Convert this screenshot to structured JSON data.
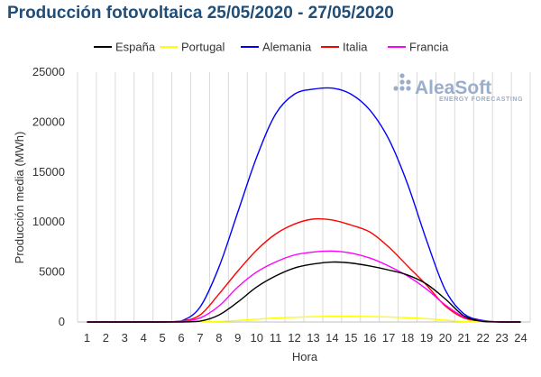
{
  "title": "Producción fotovoltaica 25/05/2020 - 27/05/2020",
  "logo": {
    "name": "AleaSoft",
    "tagline": "ENERGY FORECASTING"
  },
  "chart_data": {
    "type": "line",
    "title": "Producción fotovoltaica 25/05/2020 - 27/05/2020",
    "xlabel": "Hora",
    "ylabel": "Producción media (MWh)",
    "categories": [
      "1",
      "2",
      "3",
      "4",
      "5",
      "6",
      "7",
      "8",
      "9",
      "10",
      "11",
      "12",
      "13",
      "14",
      "15",
      "16",
      "17",
      "18",
      "19",
      "20",
      "21",
      "22",
      "23",
      "24"
    ],
    "ylim": [
      0,
      25000
    ],
    "yticks": [
      0,
      5000,
      10000,
      15000,
      20000,
      25000
    ],
    "grid": "vertical",
    "legend": "top",
    "series": [
      {
        "name": "España",
        "color": "#000000",
        "values": [
          0,
          0,
          0,
          0,
          0,
          0,
          80,
          700,
          2000,
          3500,
          4600,
          5400,
          5800,
          6000,
          5900,
          5600,
          5200,
          4700,
          3800,
          2300,
          600,
          50,
          0,
          0
        ]
      },
      {
        "name": "Portugal",
        "color": "#ffff00",
        "values": [
          0,
          0,
          0,
          0,
          0,
          0,
          10,
          60,
          150,
          280,
          400,
          470,
          530,
          570,
          570,
          550,
          500,
          430,
          330,
          180,
          40,
          0,
          0,
          0
        ]
      },
      {
        "name": "Alemania",
        "color": "#0000ff",
        "values": [
          0,
          0,
          0,
          0,
          0,
          100,
          1500,
          5500,
          11000,
          16500,
          20800,
          22800,
          23300,
          23400,
          22800,
          21200,
          18300,
          13800,
          8200,
          3200,
          800,
          150,
          0,
          0
        ]
      },
      {
        "name": "Italia",
        "color": "#ff0000",
        "values": [
          0,
          0,
          0,
          0,
          0,
          80,
          700,
          2800,
          5100,
          7200,
          8800,
          9800,
          10300,
          10200,
          9700,
          9000,
          7500,
          5600,
          3700,
          1600,
          400,
          80,
          0,
          0
        ]
      },
      {
        "name": "Francia",
        "color": "#ff00ff",
        "values": [
          0,
          0,
          0,
          0,
          0,
          50,
          400,
          1600,
          3500,
          5000,
          6000,
          6700,
          7000,
          7100,
          6900,
          6400,
          5600,
          4600,
          3300,
          1700,
          500,
          100,
          0,
          0
        ]
      }
    ]
  }
}
